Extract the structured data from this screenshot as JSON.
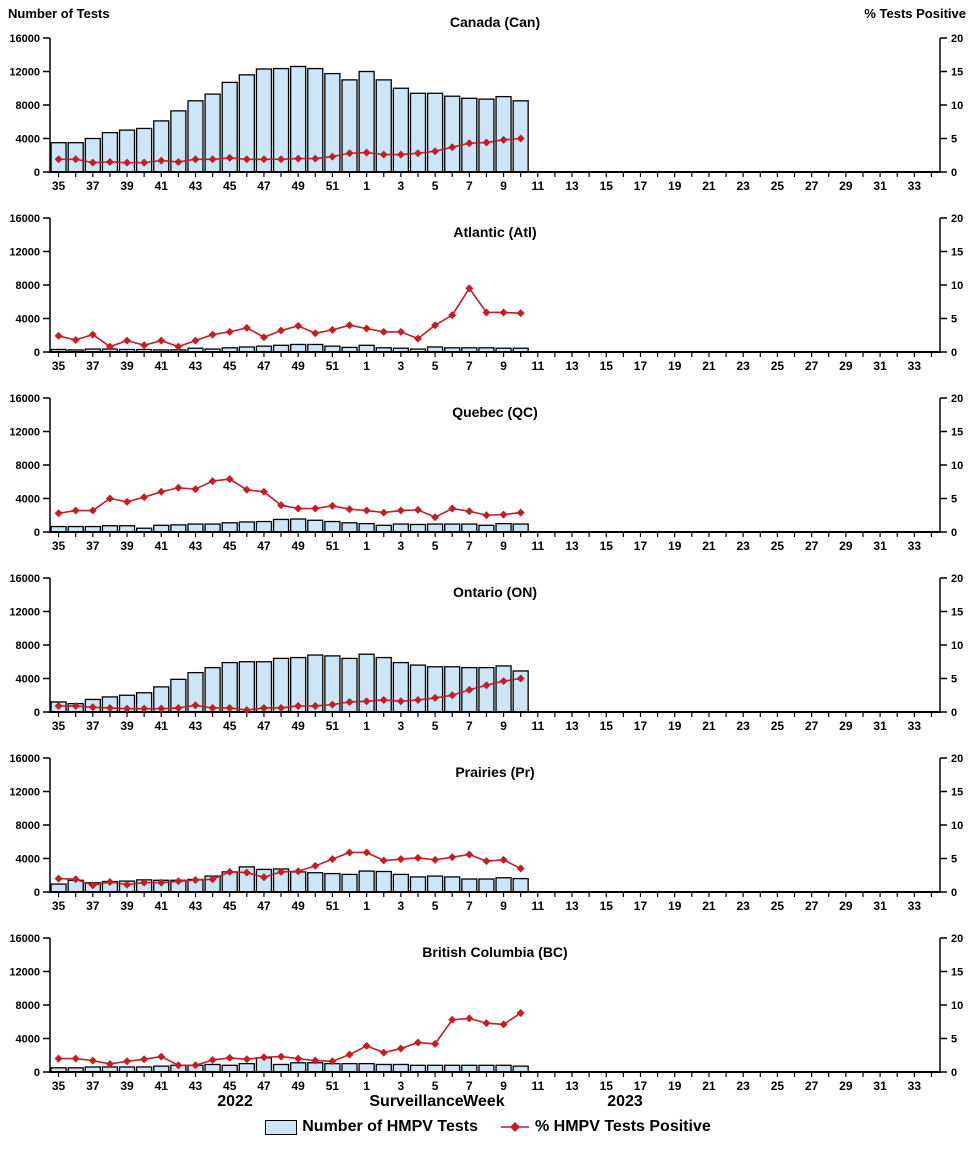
{
  "header": {
    "left_axis_title": "Number of Tests",
    "right_axis_title": "% Tests Positive"
  },
  "footer": {
    "year_left": "2022",
    "x_axis_title": "Surveillance Week",
    "year_right": "2023",
    "legend": [
      {
        "label": "Number of HMPV Tests",
        "marker": "bar-swatch"
      },
      {
        "label": "% HMPV Tests Positive",
        "marker": "line-diamond"
      }
    ]
  },
  "style": {
    "bar_fill": "#CDE6F7",
    "bar_stroke": "#000000",
    "line_color": "#C41E25",
    "axis_color": "#000000"
  },
  "axes": {
    "weeks": [
      35,
      36,
      37,
      38,
      39,
      40,
      41,
      42,
      43,
      44,
      45,
      46,
      47,
      48,
      49,
      50,
      51,
      52,
      1,
      2,
      3,
      4,
      5,
      6,
      7,
      8,
      9,
      10,
      11,
      12,
      13,
      14,
      15,
      16,
      17,
      18,
      19,
      20,
      21,
      22,
      23,
      24,
      25,
      26,
      27,
      28,
      29,
      30,
      31,
      32,
      33,
      34
    ],
    "left_ticks": [
      0,
      4000,
      8000,
      12000,
      16000
    ],
    "left_max": 16000,
    "right_ticks": [
      0,
      5,
      10,
      15,
      20
    ],
    "right_max": 20
  },
  "chart_data": [
    {
      "type": "combo-bar-line",
      "title": "Canada (Can)",
      "legend_position": "bottom",
      "grid": false,
      "series": [
        {
          "name": "Number of HMPV Tests",
          "chart": "bar",
          "axis": "left",
          "values": [
            3500,
            3500,
            4000,
            4700,
            5000,
            5200,
            6100,
            7300,
            8500,
            9300,
            10700,
            11600,
            12300,
            12350,
            12600,
            12350,
            11750,
            11000,
            12000,
            11000,
            10000,
            9400,
            9400,
            9050,
            8800,
            8700,
            9000,
            8500
          ]
        },
        {
          "name": "% HMPV Tests Positive",
          "chart": "line",
          "axis": "right",
          "values": [
            1.9,
            1.9,
            1.4,
            1.5,
            1.4,
            1.4,
            1.7,
            1.5,
            1.9,
            1.9,
            2.1,
            1.9,
            1.9,
            1.9,
            2.0,
            2.0,
            2.3,
            2.8,
            2.9,
            2.6,
            2.6,
            2.8,
            3.1,
            3.7,
            4.3,
            4.4,
            4.8,
            5.0
          ]
        }
      ]
    },
    {
      "type": "combo-bar-line",
      "title": "Atlantic (Atl)",
      "grid": false,
      "series": [
        {
          "name": "Number of HMPV Tests",
          "chart": "bar",
          "axis": "left",
          "values": [
            300,
            250,
            350,
            350,
            300,
            300,
            250,
            250,
            450,
            350,
            500,
            600,
            700,
            800,
            900,
            900,
            700,
            550,
            800,
            500,
            450,
            350,
            600,
            500,
            500,
            500,
            450,
            450
          ]
        },
        {
          "name": "% HMPV Tests Positive",
          "chart": "line",
          "axis": "right",
          "values": [
            2.4,
            1.8,
            2.6,
            0.8,
            1.7,
            1.0,
            1.7,
            0.8,
            1.7,
            2.6,
            3.0,
            3.6,
            2.2,
            3.2,
            3.9,
            2.8,
            3.3,
            4.0,
            3.5,
            3.0,
            3.0,
            2.0,
            4.0,
            5.5,
            9.5,
            5.9,
            5.9,
            5.8
          ]
        }
      ]
    },
    {
      "type": "combo-bar-line",
      "title": "Quebec (QC)",
      "grid": false,
      "series": [
        {
          "name": "Number of HMPV Tests",
          "chart": "bar",
          "axis": "left",
          "values": [
            650,
            650,
            650,
            750,
            750,
            450,
            800,
            850,
            950,
            950,
            1100,
            1200,
            1250,
            1500,
            1550,
            1400,
            1250,
            1100,
            1000,
            800,
            950,
            900,
            950,
            950,
            950,
            800,
            1000,
            950
          ]
        },
        {
          "name": "% HMPV Tests Positive",
          "chart": "line",
          "axis": "right",
          "values": [
            2.8,
            3.2,
            3.2,
            5.0,
            4.5,
            5.2,
            6.0,
            6.6,
            6.4,
            7.6,
            7.9,
            6.3,
            6.0,
            4.0,
            3.5,
            3.5,
            3.9,
            3.4,
            3.2,
            2.9,
            3.2,
            3.3,
            2.2,
            3.5,
            3.1,
            2.5,
            2.6,
            2.9
          ]
        }
      ]
    },
    {
      "type": "combo-bar-line",
      "title": "Ontario (ON)",
      "grid": false,
      "series": [
        {
          "name": "Number of HMPV Tests",
          "chart": "bar",
          "axis": "left",
          "values": [
            1200,
            1000,
            1500,
            1800,
            2000,
            2300,
            3000,
            3900,
            4700,
            5300,
            5900,
            6000,
            6000,
            6400,
            6500,
            6800,
            6700,
            6400,
            6900,
            6500,
            5900,
            5600,
            5400,
            5400,
            5300,
            5300,
            5500,
            4900
          ]
        },
        {
          "name": "% HMPV Tests Positive",
          "chart": "line",
          "axis": "right",
          "values": [
            0.9,
            0.9,
            0.7,
            0.6,
            0.5,
            0.5,
            0.5,
            0.6,
            1.0,
            0.6,
            0.6,
            0.3,
            0.6,
            0.6,
            0.9,
            0.9,
            1.1,
            1.5,
            1.6,
            1.8,
            1.6,
            1.8,
            2.1,
            2.5,
            3.3,
            4.0,
            4.6,
            5.0
          ]
        }
      ]
    },
    {
      "type": "combo-bar-line",
      "title": "Prairies (Pr)",
      "grid": false,
      "series": [
        {
          "name": "Number of HMPV Tests",
          "chart": "bar",
          "axis": "left",
          "values": [
            950,
            1400,
            1100,
            1250,
            1300,
            1450,
            1400,
            1400,
            1500,
            1900,
            2400,
            3000,
            2700,
            2750,
            2400,
            2300,
            2200,
            2100,
            2500,
            2450,
            2100,
            1800,
            1900,
            1800,
            1550,
            1550,
            1700,
            1600
          ]
        },
        {
          "name": "% HMPV Tests Positive",
          "chart": "line",
          "axis": "right",
          "values": [
            2.0,
            1.9,
            1.0,
            1.5,
            1.1,
            1.4,
            1.4,
            1.6,
            1.8,
            1.9,
            3.0,
            2.9,
            2.2,
            3.0,
            3.1,
            3.9,
            4.9,
            5.9,
            5.9,
            4.7,
            4.9,
            5.1,
            4.8,
            5.2,
            5.6,
            4.6,
            4.8,
            3.5
          ]
        }
      ]
    },
    {
      "type": "combo-bar-line",
      "title": "British Columbia (BC)",
      "grid": false,
      "series": [
        {
          "name": "Number of HMPV Tests",
          "chart": "bar",
          "axis": "left",
          "values": [
            500,
            500,
            600,
            600,
            600,
            600,
            700,
            800,
            800,
            900,
            800,
            1000,
            1700,
            900,
            1100,
            1100,
            1000,
            1000,
            1000,
            900,
            900,
            800,
            800,
            800,
            800,
            800,
            800,
            700
          ]
        },
        {
          "name": "% HMPV Tests Positive",
          "chart": "line",
          "axis": "right",
          "values": [
            2.0,
            2.0,
            1.7,
            1.2,
            1.6,
            1.9,
            2.3,
            1.0,
            1.0,
            1.8,
            2.1,
            1.9,
            2.2,
            2.3,
            2.0,
            1.7,
            1.6,
            2.6,
            3.9,
            2.9,
            3.5,
            4.4,
            4.2,
            7.8,
            8.0,
            7.3,
            7.1,
            8.8
          ]
        }
      ]
    }
  ]
}
